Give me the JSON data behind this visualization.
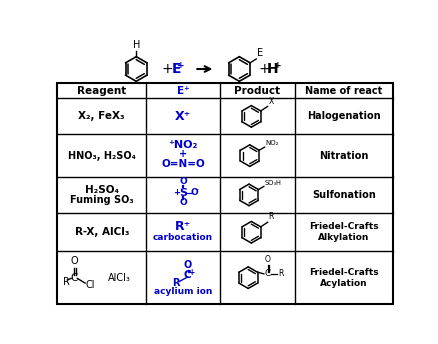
{
  "bg_color": "#ffffff",
  "black": "#000000",
  "blue": "#0000cc",
  "table_header": [
    "Reagent",
    "E⁺",
    "Product",
    "Name of react"
  ],
  "figsize": [
    4.39,
    3.44
  ],
  "dpi": 100
}
